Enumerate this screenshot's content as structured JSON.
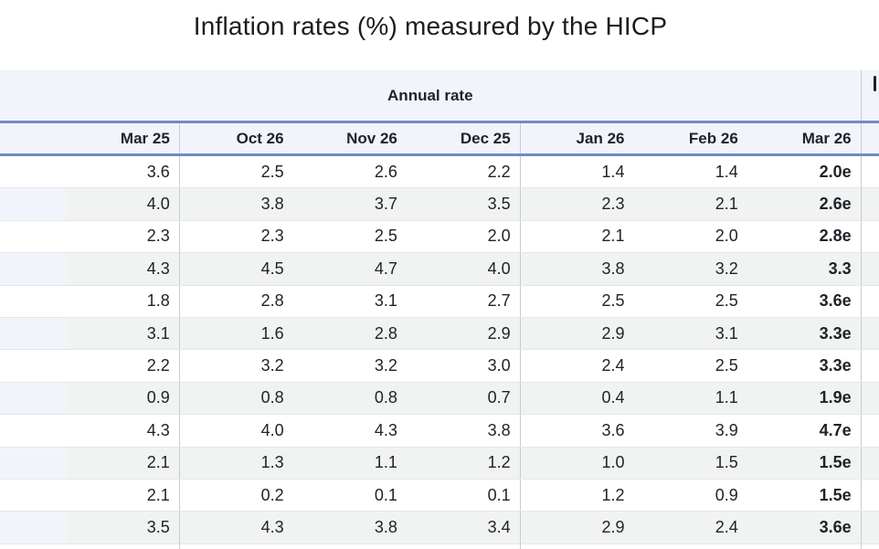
{
  "title": "Inflation rates (%) measured by the HICP",
  "table": {
    "section_header": "Annual rate",
    "columns": [
      "Mar 25",
      "Oct 26",
      "Nov 26",
      "Dec 25",
      "Jan 26",
      "Feb 26",
      "Mar 26"
    ],
    "rows": [
      [
        "3.6",
        "2.5",
        "2.6",
        "2.2",
        "1.4",
        "1.4",
        "2.0e"
      ],
      [
        "4.0",
        "3.8",
        "3.7",
        "3.5",
        "2.3",
        "2.1",
        "2.6e"
      ],
      [
        "2.3",
        "2.3",
        "2.5",
        "2.0",
        "2.1",
        "2.0",
        "2.8e"
      ],
      [
        "4.3",
        "4.5",
        "4.7",
        "4.0",
        "3.8",
        "3.2",
        "3.3"
      ],
      [
        "1.8",
        "2.8",
        "3.1",
        "2.7",
        "2.5",
        "2.5",
        "3.6e"
      ],
      [
        "3.1",
        "1.6",
        "2.8",
        "2.9",
        "2.9",
        "3.1",
        "3.3e"
      ],
      [
        "2.2",
        "3.2",
        "3.2",
        "3.0",
        "2.4",
        "2.5",
        "3.3e"
      ],
      [
        "0.9",
        "0.8",
        "0.8",
        "0.7",
        "0.4",
        "1.1",
        "1.9e"
      ],
      [
        "4.3",
        "4.0",
        "4.3",
        "3.8",
        "3.6",
        "3.9",
        "4.7e"
      ],
      [
        "2.1",
        "1.3",
        "1.1",
        "1.2",
        "1.0",
        "1.5",
        "1.5e"
      ],
      [
        "2.1",
        "0.2",
        "0.1",
        "0.1",
        "1.2",
        "0.9",
        "1.5e"
      ],
      [
        "3.5",
        "4.3",
        "3.8",
        "3.4",
        "2.9",
        "2.4",
        "3.6e"
      ]
    ],
    "bold_column": "Mar 26",
    "group_separator_after_columns": [
      "Mar 25",
      "Dec 25",
      "Mar 26"
    ]
  },
  "colors": {
    "accent_rule": "#7588c8",
    "band_background": "#f2f4fb",
    "stripe_background": "#f1f2f2",
    "group_line": "#c8ccd3",
    "row_divider": "#e4e7eb",
    "text": "#202328"
  }
}
